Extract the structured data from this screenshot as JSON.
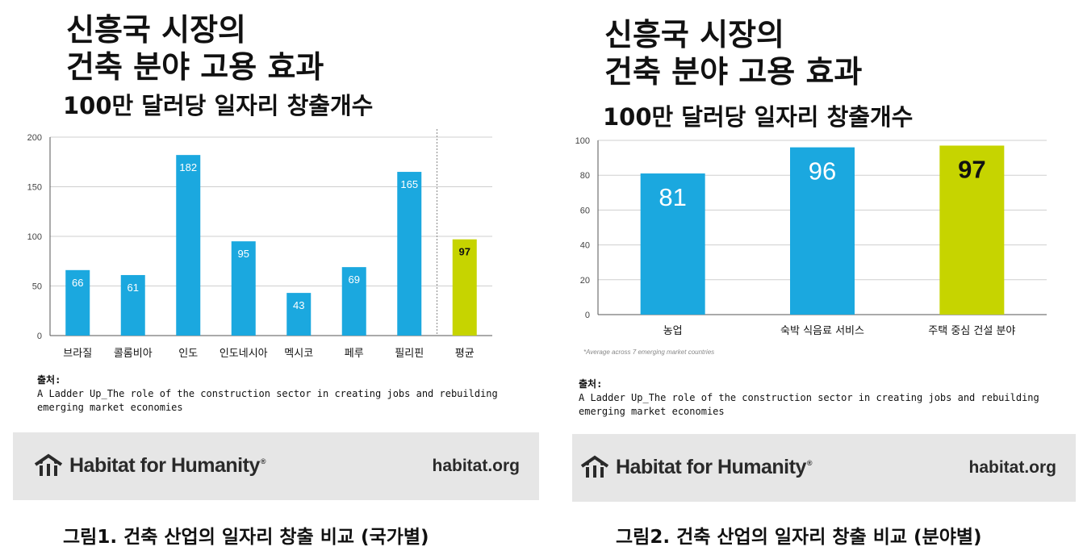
{
  "panels": [
    {
      "title_line1": "신흥국 시장의",
      "title_line2": "건축 분야 고용 효과",
      "subtitle": "100만 달러당 일자리 창출개수",
      "source_label": "출처:",
      "source_line1": "A Ladder Up_The role of the construction sector in creating jobs and rebuilding",
      "source_line2": "emerging market economies",
      "logo_text": "Habitat for Humanity",
      "logo_reg": "®",
      "site": "habitat.org",
      "caption": "그림1. 건축 산업의 일자리 창출 비교 (국가별)"
    },
    {
      "title_line1": "신흥국 시장의",
      "title_line2": "건축 분야 고용 효과",
      "subtitle": "100만 달러당 일자리 창출개수",
      "footnote": "*Average across 7 emerging market countries",
      "source_label": "출처:",
      "source_line1": "A Ladder Up_The role of the construction sector in creating jobs and rebuilding",
      "source_line2": "emerging market economies",
      "logo_text": "Habitat for Humanity",
      "logo_reg": "®",
      "site": "habitat.org",
      "caption": "그림2. 건축 산업의 일자리 창출 비교 (분야별)"
    }
  ],
  "colors": {
    "bar": "#1ba8df",
    "highlight": "#c6d400",
    "banner": "#e6e6e6",
    "grid": "#cfcfcf",
    "axis": "#555555"
  },
  "chart_data": [
    {
      "type": "bar",
      "categories": [
        "브라질",
        "콜롬비아",
        "인도",
        "인도네시아",
        "멕시코",
        "페루",
        "필리핀",
        "평균"
      ],
      "values": [
        66,
        61,
        182,
        95,
        43,
        69,
        165,
        97
      ],
      "highlight": [
        "평균"
      ],
      "ylim": [
        0,
        200
      ],
      "yticks": [
        0,
        50,
        100,
        150,
        200
      ],
      "grid": true
    },
    {
      "type": "bar",
      "categories": [
        "농업",
        "숙박 식음료 서비스",
        "주택 중심 건설 분야"
      ],
      "values": [
        81,
        96,
        97
      ],
      "highlight": [
        "주택 중심 건설 분야"
      ],
      "ylim": [
        0,
        100
      ],
      "yticks": [
        0,
        20,
        40,
        60,
        80,
        100
      ],
      "grid": true
    }
  ]
}
